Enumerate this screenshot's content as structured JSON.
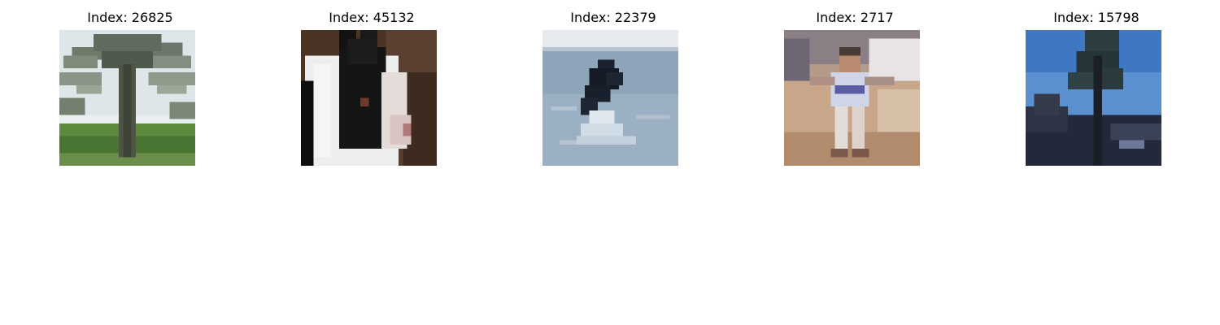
{
  "panels": [
    {
      "title": "Index: 26825",
      "image": "palm-tree-photo"
    },
    {
      "title": "Index: 45132",
      "image": "black-white-rabbit-photo"
    },
    {
      "title": "Index: 22379",
      "image": "orca-breaching-photo"
    },
    {
      "title": "Index: 2717",
      "image": "child-running-photo"
    },
    {
      "title": "Index: 15798",
      "image": "tree-blue-sky-photo"
    }
  ]
}
